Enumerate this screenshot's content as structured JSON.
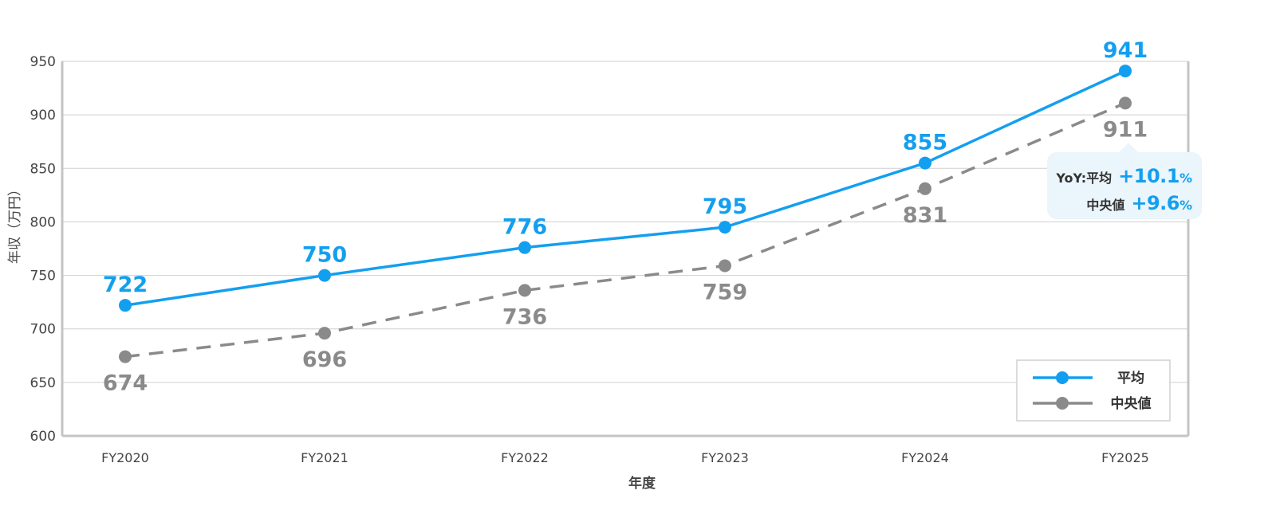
{
  "chart_data": {
    "type": "line",
    "categories": [
      "FY2020",
      "FY2021",
      "FY2022",
      "FY2023",
      "FY2024",
      "FY2025"
    ],
    "series": [
      {
        "name": "平均",
        "values": [
          722,
          750,
          776,
          795,
          855,
          941
        ],
        "color": "#139ff0",
        "style": "solid"
      },
      {
        "name": "中央値",
        "values": [
          674,
          696,
          736,
          759,
          831,
          911
        ],
        "color": "#8a8a8a",
        "style": "dashed"
      }
    ],
    "xlabel": "年度",
    "ylabel": "年収（万円）",
    "ylim": [
      600,
      950
    ],
    "yticks": [
      600,
      650,
      700,
      750,
      800,
      850,
      900,
      950
    ],
    "grid": true,
    "legend": "bottom-right"
  },
  "callout": {
    "row1_label": "YoY:平均",
    "row1_value": "+10.1",
    "row1_unit": "%",
    "row2_label": "中央値",
    "row2_value": "+9.6",
    "row2_unit": "%"
  }
}
